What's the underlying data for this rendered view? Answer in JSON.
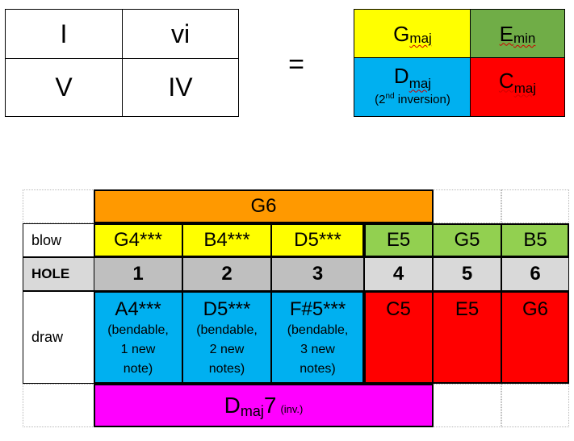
{
  "roman_grid": [
    [
      "I",
      "vi"
    ],
    [
      "V",
      "IV"
    ]
  ],
  "equals": "=",
  "chords": {
    "g": {
      "root": "G",
      "quality": "maj",
      "color": "#ffff00"
    },
    "e": {
      "root": "E",
      "quality": "min",
      "color": "#70ad47"
    },
    "d": {
      "root": "D",
      "quality": "maj",
      "color": "#00b0f0",
      "inversion_prefix": "(2",
      "inversion_sup": "nd",
      "inversion_suffix": " inversion)"
    },
    "c": {
      "root": "C",
      "quality": "maj",
      "color": "#ff0000"
    }
  },
  "harmonica": {
    "blow_chord": {
      "label": "G6",
      "color": "#ff9900"
    },
    "draw_chord": {
      "root": "D",
      "quality": "maj",
      "seventh": "7",
      "note": "(inv.)",
      "color": "#ff00ff"
    },
    "row_labels": {
      "blow": "blow",
      "hole": "HOLE",
      "draw": "draw"
    },
    "holes": [
      "1",
      "2",
      "3",
      "4",
      "5",
      "6"
    ],
    "blow": [
      "G4***",
      "B4***",
      "D5***",
      "E5",
      "G5",
      "B5"
    ],
    "draw": [
      "A4***",
      "D5***",
      "F#5***",
      "C5",
      "E5",
      "G6"
    ],
    "draw_details": [
      [
        "(bendable,",
        "1 new",
        "note)"
      ],
      [
        "(bendable,",
        "2 new",
        "notes)"
      ],
      [
        "(bendable,",
        "3 new",
        "notes)"
      ]
    ],
    "colors": {
      "yellow": "#ffff00",
      "green": "#92d050",
      "blue": "#00b0f0",
      "red": "#ff0000",
      "hole_grey": "#bfbfbf",
      "hole_light": "#d9d9d9"
    }
  }
}
